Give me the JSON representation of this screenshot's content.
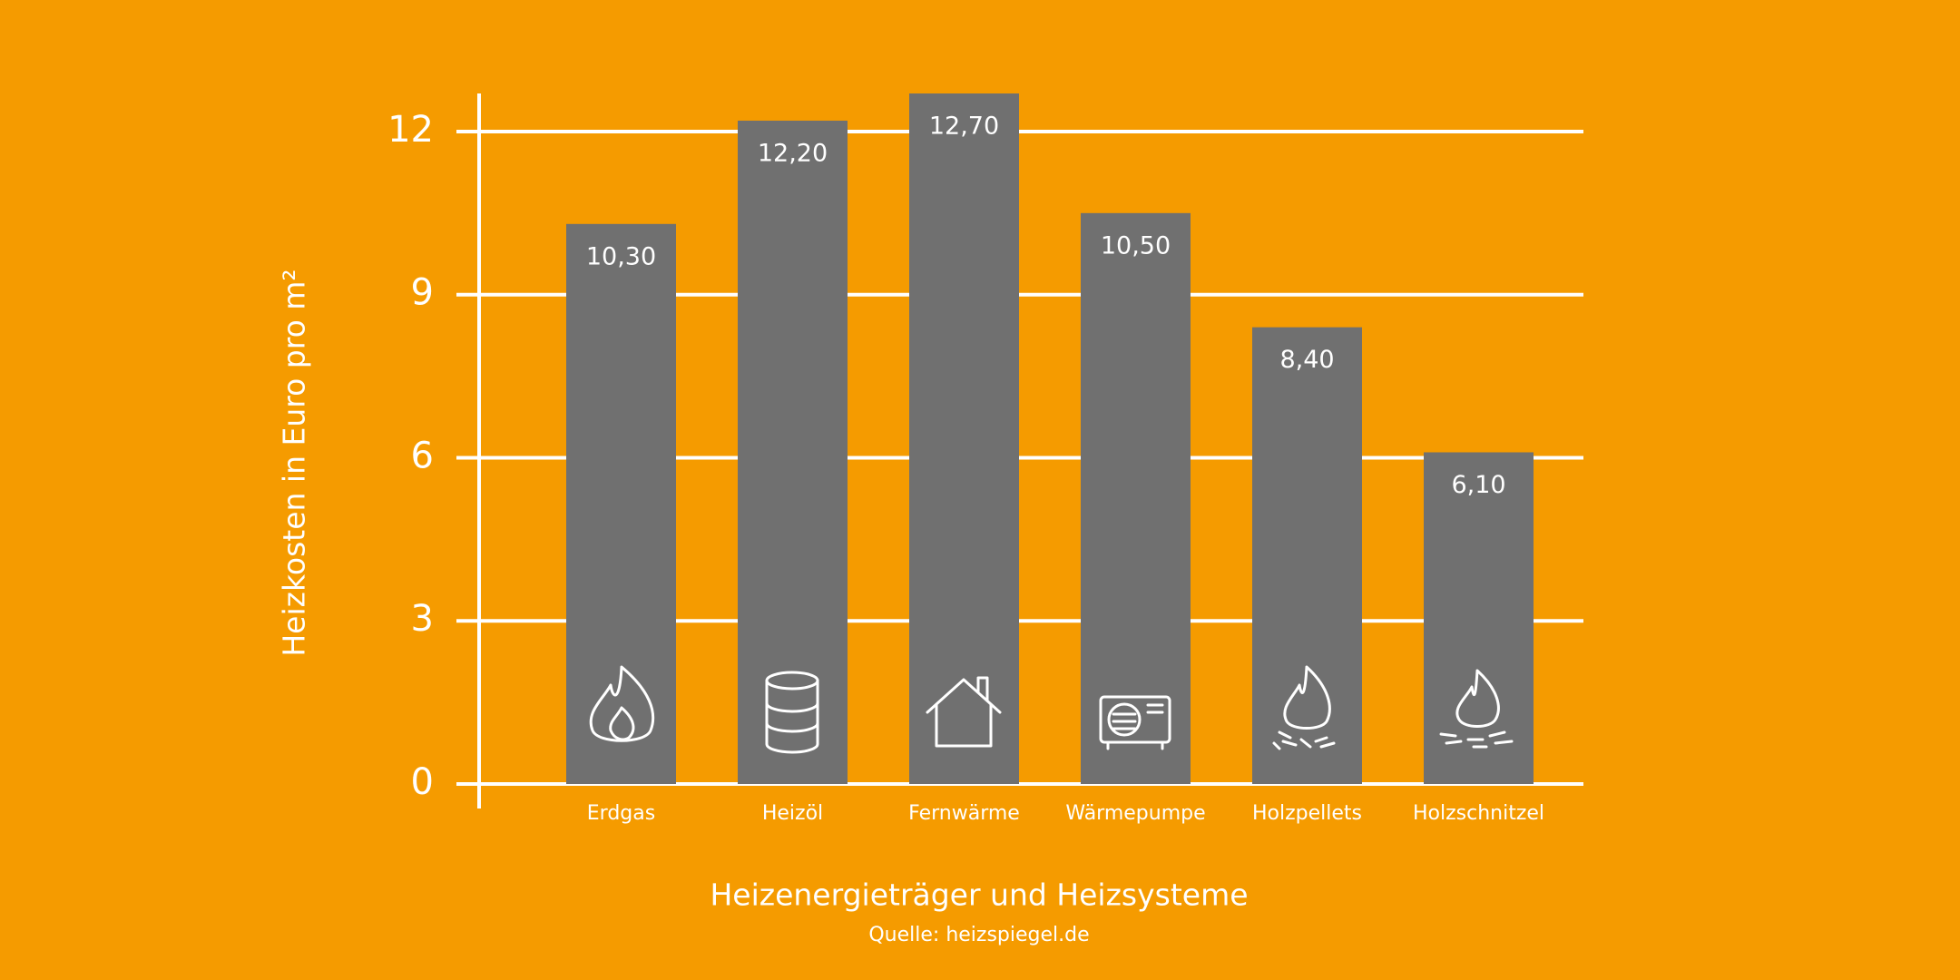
{
  "chart_data": {
    "type": "bar",
    "y_label": "Heizkosten in Euro pro m²",
    "x_label": "Heizenergieträger und Heizsysteme",
    "source": "Quelle: heizspiegel.de",
    "categories": [
      "Erdgas",
      "Heizöl",
      "Fernwärme",
      "Wärmepumpe",
      "Holzpellets",
      "Holzschnitzel"
    ],
    "values": [
      10.3,
      12.2,
      12.7,
      10.5,
      8.4,
      6.1
    ],
    "value_labels": [
      "10,30",
      "12,20",
      "12,70",
      "10,50",
      "8,40",
      "6,10"
    ],
    "color": "#707070",
    "ylim": [
      0,
      12.7
    ],
    "yticks": [
      0,
      3,
      6,
      9,
      12
    ],
    "grid": true
  }
}
